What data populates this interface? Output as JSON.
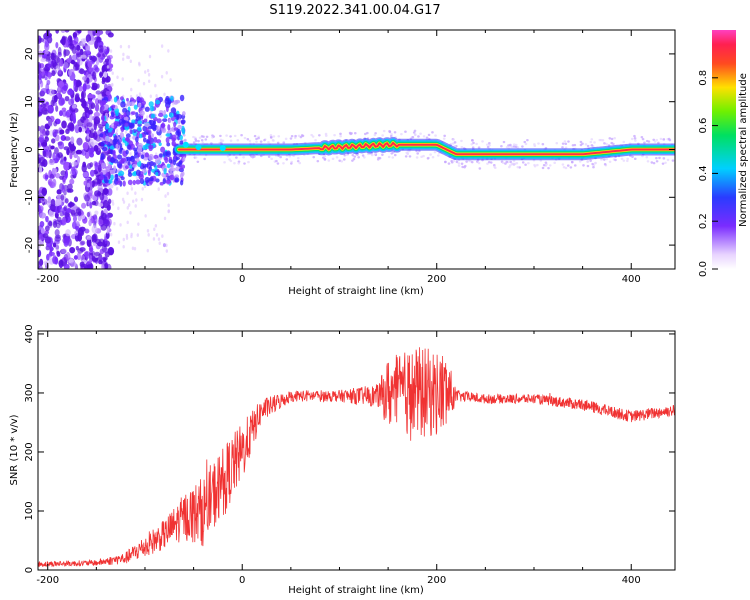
{
  "title": "S119.2022.341.00.04.G17",
  "colors": {
    "snr_line": "#f03232",
    "ridge_core": "#ff2a4a",
    "spectrogram_scatter": "#7a2cff",
    "background": "#ffffff"
  },
  "chart_data": [
    {
      "type": "heatmap",
      "title": "S119.2022.341.00.04.G17",
      "xlabel": "Height of straight line (km)",
      "ylabel": "Frequency (Hz)",
      "xlim": [
        -210,
        445
      ],
      "ylim": [
        -25,
        25
      ],
      "x_ticks": [
        -200,
        0,
        200,
        400
      ],
      "y_ticks": [
        -20,
        -10,
        0,
        10,
        20
      ],
      "x_tick_labels": [
        "-200",
        "0",
        "200",
        "400"
      ],
      "y_tick_labels": [
        "-20",
        "-10",
        "0",
        "10",
        "20"
      ],
      "grid": false,
      "colorbar": {
        "label": "Normalized spectral amplitude",
        "range": [
          0,
          1
        ],
        "ticks": [
          0,
          0.2,
          0.4,
          0.6,
          0.8
        ],
        "tick_labels": [
          "0.0",
          "0.2",
          "0.4",
          "0.6",
          "0.8"
        ],
        "colormap": "rainbow (purple-blue-cyan-green-yellow-red-pink)"
      },
      "ridge_frequency_hz": {
        "x": [
          -65,
          -30,
          0,
          50,
          100,
          150,
          200,
          220,
          260,
          300,
          350,
          400,
          445
        ],
        "y": [
          0,
          0,
          0,
          0,
          0.5,
          1,
          1,
          -1,
          -1,
          -1,
          -1,
          0,
          0
        ]
      },
      "noisy_region_x": [
        -210,
        -60
      ]
    },
    {
      "type": "line",
      "xlabel": "Height of straight line (km)",
      "ylabel": "SNR (10 * v/v)",
      "xlim": [
        -210,
        445
      ],
      "ylim": [
        0,
        405
      ],
      "x_ticks": [
        -200,
        0,
        200,
        400
      ],
      "y_ticks": [
        0,
        100,
        200,
        300,
        400
      ],
      "x_tick_labels": [
        "-200",
        "0",
        "200",
        "400"
      ],
      "y_tick_labels": [
        "0",
        "100",
        "200",
        "300",
        "400"
      ],
      "grid": false,
      "series": [
        {
          "color": "#f03232",
          "x": [
            -210,
            -150,
            -120,
            -100,
            -80,
            -60,
            -40,
            -20,
            0,
            20,
            50,
            100,
            140,
            150,
            180,
            210,
            220,
            250,
            300,
            350,
            400,
            440,
            445
          ],
          "y": [
            10,
            12,
            20,
            40,
            60,
            90,
            100,
            150,
            200,
            270,
            295,
            295,
            295,
            300,
            300,
            300,
            295,
            290,
            290,
            280,
            260,
            270,
            270
          ],
          "noise_amplitude": [
            5,
            5,
            10,
            20,
            25,
            40,
            60,
            60,
            50,
            20,
            10,
            10,
            20,
            60,
            80,
            70,
            10,
            8,
            8,
            10,
            10,
            10,
            10
          ]
        }
      ]
    }
  ]
}
